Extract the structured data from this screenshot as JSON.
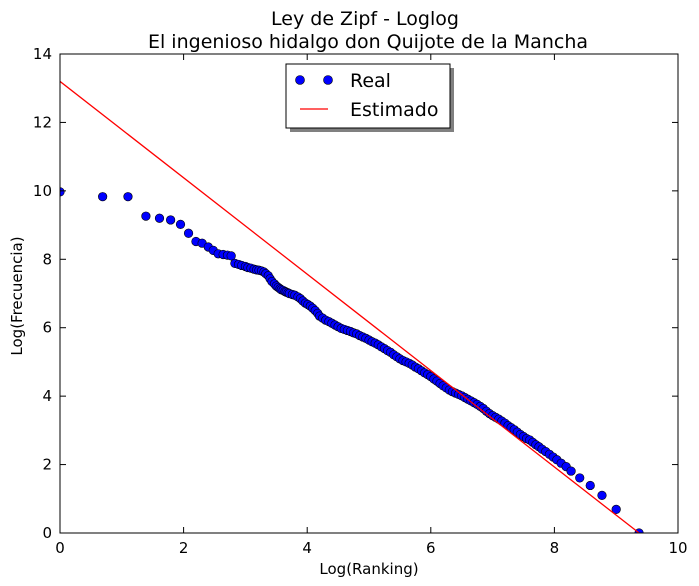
{
  "chart_data": {
    "type": "scatter",
    "title": "Ley de Zipf - Loglog",
    "subtitle": "El ingenioso hidalgo don Quijote de la Mancha",
    "xlabel": "Log(Ranking)",
    "ylabel": "Log(Frecuencia)",
    "xlim": [
      0,
      10
    ],
    "ylim": [
      0,
      14
    ],
    "x_ticks": [
      "0",
      "2",
      "4",
      "6",
      "8",
      "10"
    ],
    "y_ticks": [
      "0",
      "2",
      "4",
      "6",
      "8",
      "10",
      "12",
      "14"
    ],
    "grid": false,
    "legend_position": "top-center",
    "series": [
      {
        "name": "Real",
        "kind": "scatter",
        "color": "#0000ff",
        "points": [
          [
            0.0,
            9.97
          ],
          [
            0.69,
            9.83
          ],
          [
            1.1,
            9.83
          ],
          [
            1.39,
            9.26
          ],
          [
            1.61,
            9.2
          ],
          [
            1.79,
            9.15
          ],
          [
            1.95,
            9.02
          ],
          [
            2.08,
            8.76
          ],
          [
            2.2,
            8.52
          ],
          [
            2.3,
            8.47
          ],
          [
            2.4,
            8.36
          ],
          [
            2.48,
            8.26
          ],
          [
            2.56,
            8.16
          ],
          [
            2.64,
            8.14
          ],
          [
            2.71,
            8.12
          ],
          [
            2.77,
            8.1
          ],
          [
            2.83,
            7.88
          ],
          [
            2.89,
            7.85
          ],
          [
            2.94,
            7.82
          ],
          [
            3.0,
            7.79
          ],
          [
            3.04,
            7.76
          ],
          [
            3.09,
            7.74
          ],
          [
            3.14,
            7.71
          ],
          [
            3.18,
            7.69
          ],
          [
            3.22,
            7.68
          ],
          [
            3.26,
            7.66
          ],
          [
            3.3,
            7.63
          ],
          [
            3.33,
            7.58
          ],
          [
            3.37,
            7.52
          ],
          [
            3.4,
            7.43
          ],
          [
            3.43,
            7.35
          ],
          [
            3.47,
            7.28
          ],
          [
            3.5,
            7.22
          ],
          [
            3.53,
            7.18
          ],
          [
            3.56,
            7.14
          ],
          [
            3.58,
            7.11
          ],
          [
            3.61,
            7.09
          ],
          [
            3.64,
            7.06
          ],
          [
            3.66,
            7.04
          ],
          [
            3.69,
            7.02
          ],
          [
            3.71,
            7.0
          ],
          [
            3.76,
            6.97
          ],
          [
            3.8,
            6.95
          ],
          [
            3.85,
            6.9
          ],
          [
            3.89,
            6.85
          ],
          [
            3.93,
            6.78
          ],
          [
            3.97,
            6.72
          ],
          [
            4.01,
            6.68
          ],
          [
            4.05,
            6.63
          ],
          [
            4.09,
            6.57
          ],
          [
            4.13,
            6.5
          ],
          [
            4.17,
            6.42
          ],
          [
            4.2,
            6.34
          ],
          [
            4.25,
            6.28
          ],
          [
            4.3,
            6.22
          ],
          [
            4.35,
            6.18
          ],
          [
            4.4,
            6.13
          ],
          [
            4.45,
            6.08
          ],
          [
            4.5,
            6.03
          ],
          [
            4.55,
            5.98
          ],
          [
            4.6,
            5.95
          ],
          [
            4.65,
            5.92
          ],
          [
            4.7,
            5.89
          ],
          [
            4.75,
            5.85
          ],
          [
            4.8,
            5.82
          ],
          [
            4.85,
            5.77
          ],
          [
            4.9,
            5.73
          ],
          [
            4.95,
            5.69
          ],
          [
            5.0,
            5.64
          ],
          [
            5.05,
            5.59
          ],
          [
            5.1,
            5.55
          ],
          [
            5.15,
            5.5
          ],
          [
            5.2,
            5.44
          ],
          [
            5.25,
            5.39
          ],
          [
            5.3,
            5.33
          ],
          [
            5.35,
            5.28
          ],
          [
            5.4,
            5.21
          ],
          [
            5.45,
            5.15
          ],
          [
            5.5,
            5.09
          ],
          [
            5.55,
            5.04
          ],
          [
            5.6,
            5.0
          ],
          [
            5.65,
            4.96
          ],
          [
            5.7,
            4.91
          ],
          [
            5.75,
            4.85
          ],
          [
            5.8,
            4.8
          ],
          [
            5.85,
            4.74
          ],
          [
            5.9,
            4.68
          ],
          [
            5.95,
            4.63
          ],
          [
            6.0,
            4.57
          ],
          [
            6.05,
            4.5
          ],
          [
            6.1,
            4.44
          ],
          [
            6.15,
            4.37
          ],
          [
            6.2,
            4.3
          ],
          [
            6.25,
            4.24
          ],
          [
            6.3,
            4.18
          ],
          [
            6.35,
            4.13
          ],
          [
            6.4,
            4.09
          ],
          [
            6.45,
            4.05
          ],
          [
            6.5,
            4.01
          ],
          [
            6.55,
            3.96
          ],
          [
            6.6,
            3.91
          ],
          [
            6.65,
            3.86
          ],
          [
            6.7,
            3.81
          ],
          [
            6.75,
            3.76
          ],
          [
            6.8,
            3.7
          ],
          [
            6.85,
            3.64
          ],
          [
            6.9,
            3.56
          ],
          [
            6.95,
            3.49
          ],
          [
            7.0,
            3.43
          ],
          [
            7.05,
            3.38
          ],
          [
            7.1,
            3.33
          ],
          [
            7.15,
            3.27
          ],
          [
            7.2,
            3.21
          ],
          [
            7.25,
            3.14
          ],
          [
            7.3,
            3.08
          ],
          [
            7.35,
            3.02
          ],
          [
            7.4,
            2.95
          ],
          [
            7.45,
            2.88
          ],
          [
            7.5,
            2.82
          ],
          [
            7.55,
            2.76
          ],
          [
            7.6,
            2.72
          ],
          [
            7.65,
            2.65
          ],
          [
            7.7,
            2.58
          ],
          [
            7.75,
            2.52
          ],
          [
            7.8,
            2.45
          ],
          [
            7.86,
            2.38
          ],
          [
            7.92,
            2.3
          ],
          [
            7.98,
            2.22
          ],
          [
            8.04,
            2.14
          ],
          [
            8.11,
            2.04
          ],
          [
            8.19,
            1.94
          ],
          [
            8.27,
            1.81
          ],
          [
            8.41,
            1.61
          ],
          [
            8.58,
            1.39
          ],
          [
            8.77,
            1.1
          ],
          [
            9.0,
            0.69
          ],
          [
            9.37,
            0.0
          ]
        ]
      },
      {
        "name": "Estimado",
        "kind": "line",
        "color": "#ff0000",
        "points": [
          [
            0,
            13.2
          ],
          [
            9.37,
            0.0
          ]
        ]
      }
    ]
  }
}
